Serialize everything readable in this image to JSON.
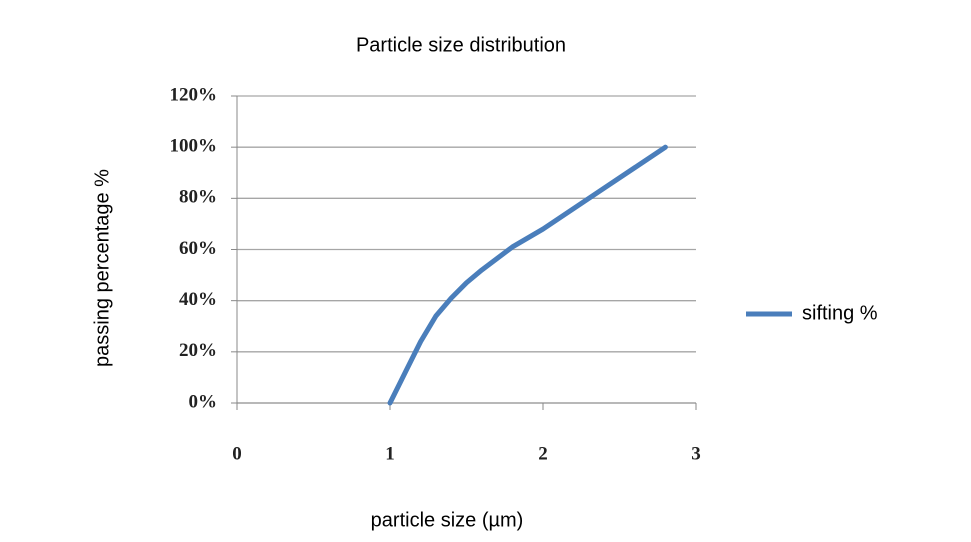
{
  "chart_data": {
    "type": "line",
    "title": "Particle size distribution",
    "x_label": "particle size (µm)",
    "y_label": "passing percentage  %",
    "xlim": [
      0,
      3
    ],
    "xticks": [
      0,
      1,
      2,
      3
    ],
    "ylim": [
      0,
      120
    ],
    "yticks": [
      {
        "value": 0,
        "label": "0%"
      },
      {
        "value": 20,
        "label": "20%"
      },
      {
        "value": 40,
        "label": "40%"
      },
      {
        "value": 60,
        "label": "60%"
      },
      {
        "value": 80,
        "label": "80%"
      },
      {
        "value": 100,
        "label": "100%"
      },
      {
        "value": 120,
        "label": "120%"
      }
    ],
    "grid": true,
    "legend": "right",
    "x": [
      1,
      1.1,
      1.2,
      1.3,
      1.4,
      1.5,
      1.6,
      1.8,
      2,
      2.2,
      2.4,
      2.6,
      2.8
    ],
    "series": [
      {
        "name": "sifting %",
        "color": "#4a7ebb",
        "values": [
          0,
          12,
          24,
          34,
          41,
          47,
          52,
          61,
          68,
          76,
          84,
          92,
          100
        ]
      }
    ]
  }
}
